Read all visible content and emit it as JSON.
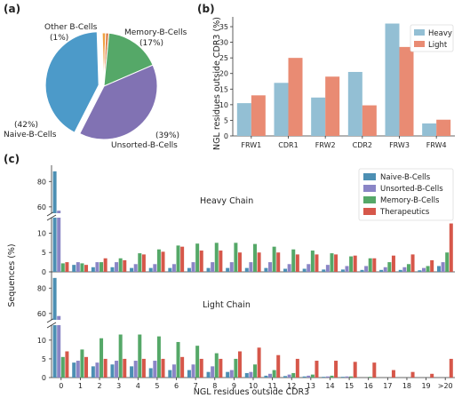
{
  "panels": {
    "a": "(a)",
    "b": "(b)",
    "c": "(c)"
  },
  "chart_data": [
    {
      "id": "a",
      "type": "pie",
      "slices": [
        {
          "name": "Other B-Cells",
          "label_name": "Other B-Cells",
          "label_pct": "(1%)",
          "value": 1,
          "color": "#dd8452",
          "explode": false
        },
        {
          "name": "Memory-B-Cells",
          "label_name": "Memory-B-Cells",
          "label_pct": "(17%)",
          "value": 17,
          "color": "#55a868",
          "explode": false
        },
        {
          "name": "Unsorted-B-Cells",
          "label_name": "Unsorted-B-Cells",
          "label_pct": "(39%)",
          "value": 39,
          "color": "#8172b3",
          "explode": false
        },
        {
          "name": "Naive-B-Cells",
          "label_name": "Naive-B-Cells",
          "label_pct": "(42%)",
          "value": 42,
          "color": "#4c9ac9",
          "explode": true
        }
      ],
      "extra_slice": {
        "value": 1,
        "color": "#f0a040"
      }
    },
    {
      "id": "b",
      "type": "bar",
      "categories": [
        "FRW1",
        "CDR1",
        "FRW2",
        "CDR2",
        "FRW3",
        "FRW4"
      ],
      "series": [
        {
          "name": "Heavy",
          "color": "#93bfd4",
          "values": [
            10.5,
            17,
            12.3,
            20.5,
            36,
            4
          ]
        },
        {
          "name": "Light",
          "color": "#e98b73",
          "values": [
            13,
            25,
            19,
            9.8,
            28.5,
            5.2
          ]
        }
      ],
      "ylabel": "NGL residues outside CDR3 (%)",
      "ylim": [
        0,
        37
      ],
      "yticks": [
        "0",
        "5",
        "10",
        "15",
        "20",
        "25",
        "30",
        "35"
      ],
      "legend": "top-right"
    },
    {
      "id": "c",
      "type": "bar",
      "categories": [
        "0",
        "1",
        "2",
        "3",
        "4",
        "5",
        "6",
        "7",
        "8",
        "9",
        "10",
        "11",
        "12",
        "13",
        "14",
        "15",
        "16",
        "17",
        "18",
        "19",
        ">20"
      ],
      "xlabel": "NGL residues outside CDR3",
      "ylabel": "Sequences (%)",
      "broken_y_axis": true,
      "yticks_lower": [
        "0",
        "5",
        "10"
      ],
      "yticks_upper": [
        "60",
        "80"
      ],
      "legend": "top-right",
      "series_names": [
        "Naive-B-Cells",
        "Unsorted-B-Cells",
        "Memory-B-Cells",
        "Therapeutics"
      ],
      "series_colors": [
        "#4c8fb3",
        "#8a85c6",
        "#55a868",
        "#d6574a"
      ],
      "heavy": {
        "title": "Heavy Chain",
        "series": [
          {
            "name": "Naive-B-Cells",
            "values": [
              88,
              1.8,
              1.2,
              1.2,
              1,
              1,
              1,
              1,
              1,
              1,
              1,
              1,
              0.8,
              0.8,
              0.6,
              0.6,
              0.5,
              0.5,
              0.5,
              0.4,
              1.5
            ]
          },
          {
            "name": "Unsorted-B-Cells",
            "values": [
              57,
              2.5,
              2.5,
              2.5,
              2,
              2,
              2,
              2.5,
              2.5,
              2.5,
              2.5,
              2.5,
              2,
              2,
              1.8,
              1.5,
              1.5,
              1.2,
              1.2,
              1,
              2.5
            ]
          },
          {
            "name": "Memory-B-Cells",
            "values": [
              2.2,
              2.2,
              2.5,
              3.5,
              4.8,
              5.8,
              6.8,
              7.3,
              7.5,
              7.5,
              7.2,
              6.5,
              5.8,
              5.5,
              4.8,
              4,
              3.5,
              2.5,
              2,
              1.5,
              5
            ]
          },
          {
            "name": "Therapeutics",
            "values": [
              2.5,
              1.8,
              3.5,
              3,
              4.5,
              5.2,
              6.5,
              5.5,
              5.5,
              5,
              5,
              5,
              4.5,
              4.5,
              4.5,
              4.2,
              3.5,
              4.2,
              4.5,
              3,
              12.5
            ]
          }
        ]
      },
      "light": {
        "title": "Light Chain",
        "series": [
          {
            "name": "Naive-B-Cells",
            "values": [
              88,
              4,
              3,
              3.5,
              3,
              2.5,
              2,
              2,
              1.5,
              1.5,
              1.2,
              0.5,
              0.4,
              0.3,
              0.2,
              0.2,
              0,
              0,
              0,
              0,
              0
            ]
          },
          {
            "name": "Unsorted-B-Cells",
            "values": [
              58,
              4.5,
              4,
              4.5,
              4.5,
              4.5,
              3.5,
              3.5,
              3,
              2,
              1.5,
              1,
              0.8,
              0.5,
              0.3,
              0.3,
              0,
              0,
              0,
              0,
              0
            ]
          },
          {
            "name": "Memory-B-Cells",
            "values": [
              5.5,
              7.5,
              10.5,
              11.5,
              11.5,
              11,
              9.5,
              8.5,
              6.5,
              5,
              3.5,
              2,
              1.2,
              0.8,
              0.5,
              0.3,
              0.2,
              0,
              0,
              0,
              0
            ]
          },
          {
            "name": "Therapeutics",
            "values": [
              7,
              5.5,
              5,
              5,
              5,
              5,
              5.5,
              5,
              5,
              7,
              8,
              6,
              5,
              4.5,
              4.5,
              4.2,
              4,
              2,
              1.5,
              1,
              5
            ]
          }
        ]
      }
    }
  ]
}
